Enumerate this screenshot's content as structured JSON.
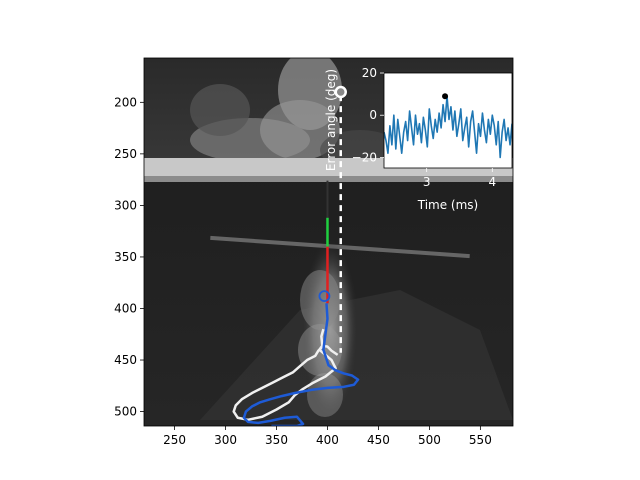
{
  "chart_data": [
    {
      "type": "image",
      "description_type": "grayscale video frame with tracked trajectory overlays",
      "xlim": [
        220,
        582
      ],
      "ylim": [
        514,
        157
      ],
      "xticks": [
        250,
        300,
        350,
        400,
        450,
        500,
        550
      ],
      "yticks": [
        200,
        250,
        300,
        350,
        400,
        450,
        500
      ],
      "xticklabels": [
        "250",
        "300",
        "350",
        "400",
        "450",
        "500",
        "550"
      ],
      "yticklabels": [
        "200",
        "250",
        "300",
        "350",
        "400",
        "450",
        "500"
      ],
      "image_y_top": 157,
      "overlays": {
        "white_trajectory": {
          "color": "#f0f0f0",
          "x": [
            396,
            394,
            395,
            391,
            388,
            380,
            373,
            366,
            356,
            346,
            336,
            326,
            316,
            310,
            308,
            312,
            322,
            336,
            350,
            362,
            368,
            376,
            386,
            398,
            408,
            404,
            398,
            392,
            395,
            400,
            404,
            410
          ],
          "y": [
            420,
            427,
            437,
            441,
            446,
            450,
            456,
            462,
            467,
            472,
            477,
            482,
            488,
            494,
            500,
            506,
            508,
            505,
            498,
            491,
            484,
            478,
            472,
            466,
            458,
            450,
            445,
            440,
            436,
            437,
            441,
            445
          ]
        },
        "blue_trajectory": {
          "color": "#1e5bd6",
          "x": [
            399,
            400,
            398,
            396,
            401,
            408,
            416,
            424,
            430,
            426,
            416,
            400,
            384,
            368,
            355,
            344,
            334,
            326,
            320,
            318,
            322,
            332,
            344,
            358,
            370,
            376,
            370,
            356,
            345
          ],
          "y": [
            395,
            410,
            425,
            440,
            455,
            460,
            463,
            465,
            469,
            474,
            476,
            477,
            479,
            482,
            485,
            488,
            491,
            495,
            500,
            506,
            510,
            511,
            509,
            506,
            505,
            512,
            514,
            514,
            514
          ]
        },
        "blue_loop": {
          "color": "#1e5bd6",
          "cx": 397,
          "cy": 388,
          "r": 3
        },
        "dashed_marker_line": {
          "color": "#ffffff",
          "x": 413,
          "y1": 193,
          "y2": 443
        },
        "marker_circle": {
          "color": "#ffffff",
          "x": 413,
          "y": 190
        },
        "red_segment": {
          "color": "#e02020",
          "x": 400,
          "y1": 340,
          "y2": 395
        },
        "green_segment": {
          "color": "#20d040",
          "x": 400,
          "y1": 312,
          "y2": 340
        },
        "black_line": {
          "color": "#333333",
          "x": 400,
          "y1": 276,
          "y2": 312
        }
      }
    },
    {
      "type": "line",
      "xlabel": "Time (ms)",
      "ylabel": "Error angle (deg)",
      "xlim": [
        2.35,
        4.3
      ],
      "ylim": [
        -25,
        20
      ],
      "xticks": [
        3,
        4
      ],
      "yticks": [
        20,
        0,
        -20
      ],
      "xticklabels": [
        "3",
        "4"
      ],
      "yticklabels": [
        "20",
        "0",
        "−20"
      ],
      "series": [
        {
          "color": "#1f77b4",
          "x": [
            2.35,
            2.38,
            2.41,
            2.44,
            2.47,
            2.5,
            2.53,
            2.56,
            2.59,
            2.62,
            2.65,
            2.68,
            2.71,
            2.74,
            2.77,
            2.8,
            2.83,
            2.86,
            2.89,
            2.92,
            2.95,
            2.98,
            3.01,
            3.04,
            3.07,
            3.1,
            3.13,
            3.16,
            3.19,
            3.22,
            3.25,
            3.28,
            3.31,
            3.34,
            3.37,
            3.4,
            3.43,
            3.46,
            3.49,
            3.52,
            3.55,
            3.58,
            3.61,
            3.64,
            3.67,
            3.7,
            3.73,
            3.76,
            3.79,
            3.82,
            3.85,
            3.88,
            3.91,
            3.94,
            3.97,
            4.0,
            4.03,
            4.06,
            4.09,
            4.12,
            4.15,
            4.18,
            4.21,
            4.24,
            4.27,
            4.3
          ],
          "y": [
            -8,
            -12,
            -18,
            -5,
            -14,
            0,
            -16,
            -2,
            -10,
            -18,
            -8,
            -3,
            -12,
            2,
            -6,
            -14,
            0,
            -9,
            -4,
            -13,
            -1,
            -7,
            -15,
            3,
            -5,
            -11,
            -2,
            -8,
            1,
            -6,
            5,
            -3,
            9,
            -2,
            4,
            -7,
            2,
            -10,
            -4,
            3,
            -12,
            -6,
            -1,
            -15,
            -3,
            2,
            -8,
            -18,
            -4,
            -10,
            1,
            -7,
            -13,
            -2,
            -9,
            0,
            -5,
            -14,
            -3,
            -20,
            -8,
            -2,
            -12,
            -6,
            -14,
            -4
          ]
        }
      ],
      "marker": {
        "x": 3.28,
        "y": 9
      }
    }
  ]
}
